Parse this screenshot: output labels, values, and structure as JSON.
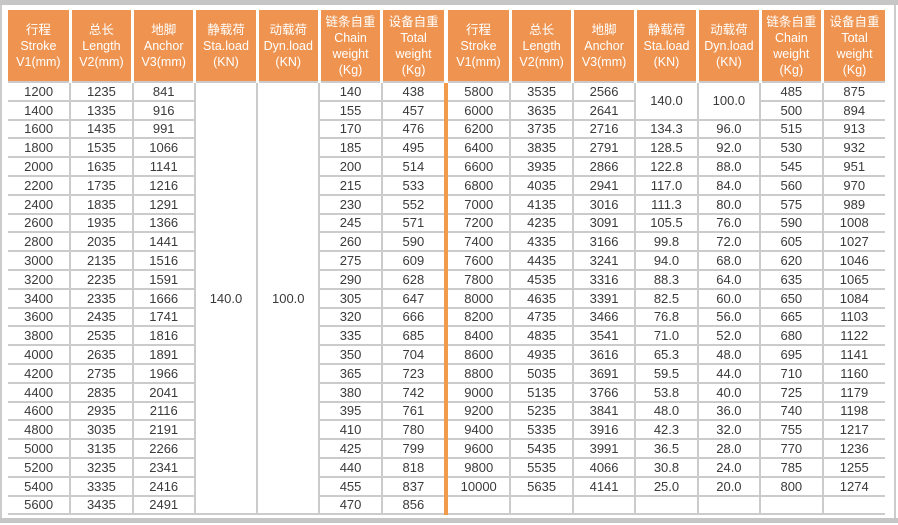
{
  "colors": {
    "header_orange": "#EF9450",
    "divider_orange": "#F09A4C",
    "grid_gray": "#CBCBCB",
    "frame_gray": "#C6C6C6",
    "header_text": "#FFFFFF",
    "cell_text": "#3A3A3A"
  },
  "tables": [
    {
      "name": "left",
      "columns": [
        {
          "key": "stroke",
          "lines": [
            "行程",
            "Stroke",
            "V1(mm)"
          ]
        },
        {
          "key": "length",
          "lines": [
            "总长",
            "Length",
            "V2(mm)"
          ]
        },
        {
          "key": "anchor",
          "lines": [
            "地脚",
            "Anchor",
            "V3(mm)"
          ]
        },
        {
          "key": "sta-load",
          "lines": [
            "静载荷",
            "Sta.load",
            "(KN)"
          ]
        },
        {
          "key": "dyn-load",
          "lines": [
            "动载荷",
            "Dyn.load",
            "(KN)"
          ]
        },
        {
          "key": "chain-weight",
          "lines": [
            "链条自重",
            "Chain",
            "weight",
            "(Kg)"
          ]
        },
        {
          "key": "total-weight",
          "lines": [
            "设备自重",
            "Total",
            "weight",
            "(Kg)"
          ]
        }
      ],
      "rows": [
        [
          "1200",
          "1235",
          "841",
          {
            "v": "140.0",
            "rs": 23
          },
          {
            "v": "100.0",
            "rs": 23
          },
          "140",
          "438"
        ],
        [
          "1400",
          "1335",
          "916",
          null,
          null,
          "155",
          "457"
        ],
        [
          "1600",
          "1435",
          "991",
          null,
          null,
          "170",
          "476"
        ],
        [
          "1800",
          "1535",
          "1066",
          null,
          null,
          "185",
          "495"
        ],
        [
          "2000",
          "1635",
          "1141",
          null,
          null,
          "200",
          "514"
        ],
        [
          "2200",
          "1735",
          "1216",
          null,
          null,
          "215",
          "533"
        ],
        [
          "2400",
          "1835",
          "1291",
          null,
          null,
          "230",
          "552"
        ],
        [
          "2600",
          "1935",
          "1366",
          null,
          null,
          "245",
          "571"
        ],
        [
          "2800",
          "2035",
          "1441",
          null,
          null,
          "260",
          "590"
        ],
        [
          "3000",
          "2135",
          "1516",
          null,
          null,
          "275",
          "609"
        ],
        [
          "3200",
          "2235",
          "1591",
          null,
          null,
          "290",
          "628"
        ],
        [
          "3400",
          "2335",
          "1666",
          null,
          null,
          "305",
          "647"
        ],
        [
          "3600",
          "2435",
          "1741",
          null,
          null,
          "320",
          "666"
        ],
        [
          "3800",
          "2535",
          "1816",
          null,
          null,
          "335",
          "685"
        ],
        [
          "4000",
          "2635",
          "1891",
          null,
          null,
          "350",
          "704"
        ],
        [
          "4200",
          "2735",
          "1966",
          null,
          null,
          "365",
          "723"
        ],
        [
          "4400",
          "2835",
          "2041",
          null,
          null,
          "380",
          "742"
        ],
        [
          "4600",
          "2935",
          "2116",
          null,
          null,
          "395",
          "761"
        ],
        [
          "4800",
          "3035",
          "2191",
          null,
          null,
          "410",
          "780"
        ],
        [
          "5000",
          "3135",
          "2266",
          null,
          null,
          "425",
          "799"
        ],
        [
          "5200",
          "3235",
          "2341",
          null,
          null,
          "440",
          "818"
        ],
        [
          "5400",
          "3335",
          "2416",
          null,
          null,
          "455",
          "837"
        ],
        [
          "5600",
          "3435",
          "2491",
          null,
          null,
          "470",
          "856"
        ]
      ]
    },
    {
      "name": "right",
      "columns": [
        {
          "key": "stroke",
          "lines": [
            "行程",
            "Stroke",
            "V1(mm)"
          ]
        },
        {
          "key": "length",
          "lines": [
            "总长",
            "Length",
            "V2(mm)"
          ]
        },
        {
          "key": "anchor",
          "lines": [
            "地脚",
            "Anchor",
            "V3(mm)"
          ]
        },
        {
          "key": "sta-load",
          "lines": [
            "静载荷",
            "Sta.load",
            "(KN)"
          ]
        },
        {
          "key": "dyn-load",
          "lines": [
            "动载荷",
            "Dyn.load",
            "(KN)"
          ]
        },
        {
          "key": "chain-weight",
          "lines": [
            "链条自重",
            "Chain",
            "weight",
            "(Kg)"
          ]
        },
        {
          "key": "total-weight",
          "lines": [
            "设备自重",
            "Total",
            "weight",
            "(Kg)"
          ]
        }
      ],
      "rows": [
        [
          "5800",
          "3535",
          "2566",
          {
            "v": "140.0",
            "rs": 2
          },
          {
            "v": "100.0",
            "rs": 2
          },
          "485",
          "875"
        ],
        [
          "6000",
          "3635",
          "2641",
          null,
          null,
          "500",
          "894"
        ],
        [
          "6200",
          "3735",
          "2716",
          "134.3",
          "96.0",
          "515",
          "913"
        ],
        [
          "6400",
          "3835",
          "2791",
          "128.5",
          "92.0",
          "530",
          "932"
        ],
        [
          "6600",
          "3935",
          "2866",
          "122.8",
          "88.0",
          "545",
          "951"
        ],
        [
          "6800",
          "4035",
          "2941",
          "117.0",
          "84.0",
          "560",
          "970"
        ],
        [
          "7000",
          "4135",
          "3016",
          "111.3",
          "80.0",
          "575",
          "989"
        ],
        [
          "7200",
          "4235",
          "3091",
          "105.5",
          "76.0",
          "590",
          "1008"
        ],
        [
          "7400",
          "4335",
          "3166",
          "99.8",
          "72.0",
          "605",
          "1027"
        ],
        [
          "7600",
          "4435",
          "3241",
          "94.0",
          "68.0",
          "620",
          "1046"
        ],
        [
          "7800",
          "4535",
          "3316",
          "88.3",
          "64.0",
          "635",
          "1065"
        ],
        [
          "8000",
          "4635",
          "3391",
          "82.5",
          "60.0",
          "650",
          "1084"
        ],
        [
          "8200",
          "4735",
          "3466",
          "76.8",
          "56.0",
          "665",
          "1103"
        ],
        [
          "8400",
          "4835",
          "3541",
          "71.0",
          "52.0",
          "680",
          "1122"
        ],
        [
          "8600",
          "4935",
          "3616",
          "65.3",
          "48.0",
          "695",
          "1141"
        ],
        [
          "8800",
          "5035",
          "3691",
          "59.5",
          "44.0",
          "710",
          "1160"
        ],
        [
          "9000",
          "5135",
          "3766",
          "53.8",
          "40.0",
          "725",
          "1179"
        ],
        [
          "9200",
          "5235",
          "3841",
          "48.0",
          "36.0",
          "740",
          "1198"
        ],
        [
          "9400",
          "5335",
          "3916",
          "42.3",
          "32.0",
          "755",
          "1217"
        ],
        [
          "9600",
          "5435",
          "3991",
          "36.5",
          "28.0",
          "770",
          "1236"
        ],
        [
          "9800",
          "5535",
          "4066",
          "30.8",
          "24.0",
          "785",
          "1255"
        ],
        [
          "10000",
          "5635",
          "4141",
          "25.0",
          "20.0",
          "800",
          "1274"
        ],
        [
          "",
          "",
          "",
          "",
          "",
          "",
          ""
        ]
      ]
    }
  ]
}
